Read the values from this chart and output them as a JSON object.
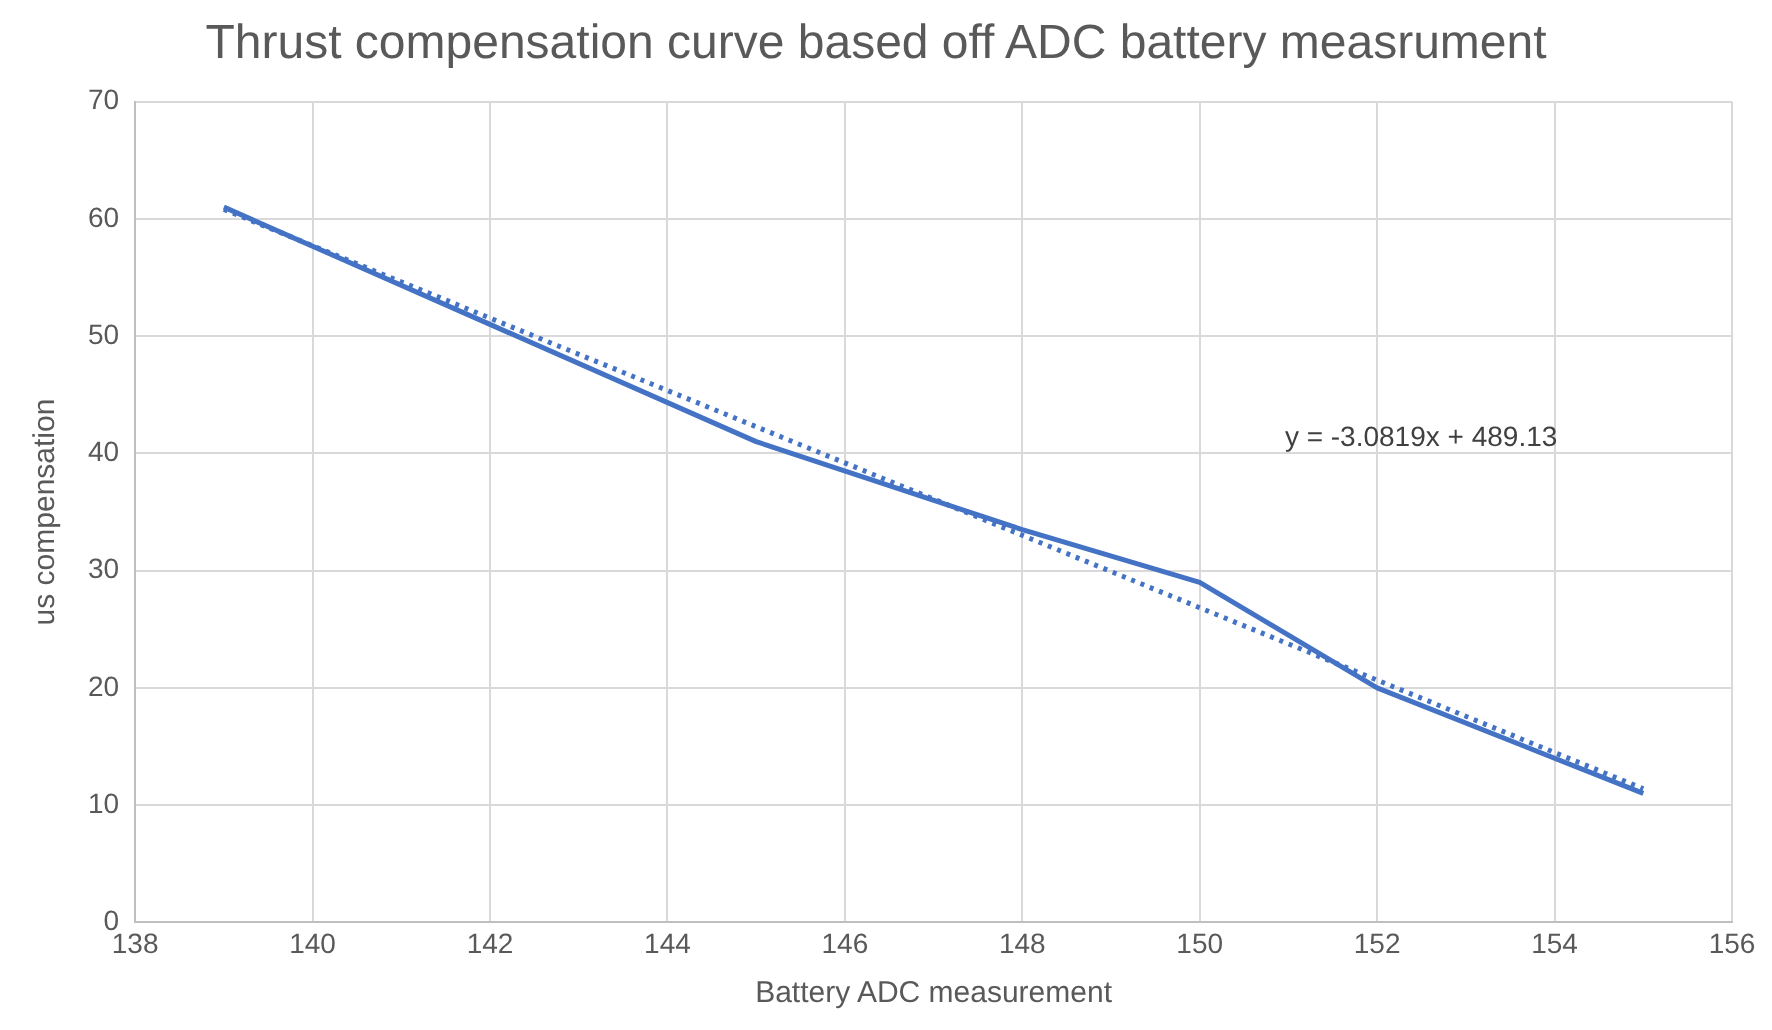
{
  "chart_data": {
    "type": "line",
    "title": "Thrust compensation curve based off ADC battery measrument",
    "xlabel": "Battery ADC measurement",
    "ylabel": "us compensation",
    "x": [
      139,
      142,
      145,
      148,
      150,
      152,
      155
    ],
    "series": [
      {
        "color": "#4472c4",
        "values": [
          61,
          51,
          41,
          33.5,
          29,
          20,
          11
        ],
        "line_style": "solid"
      },
      {
        "type": "line",
        "color": "#4472c4",
        "x": [
          139,
          155
        ],
        "values": [
          60.8,
          11.4
        ],
        "line_style": "dotted"
      }
    ],
    "xlim": [
      138,
      156
    ],
    "xticks": [
      138,
      140,
      142,
      144,
      146,
      148,
      150,
      152,
      154,
      156
    ],
    "ylim": [
      0,
      70
    ],
    "yticks": [
      0,
      10,
      20,
      30,
      40,
      50,
      60,
      70
    ],
    "grid": true,
    "legend": false,
    "marker": "none",
    "annotations": [
      "y = -3.0819x + 489.13"
    ]
  }
}
